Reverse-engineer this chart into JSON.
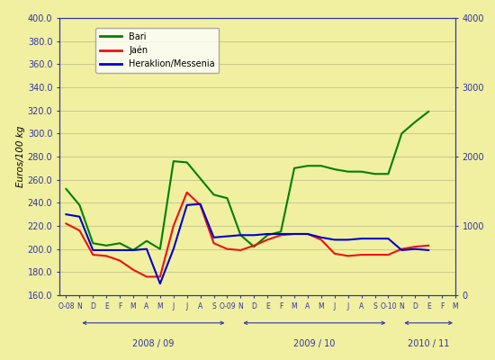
{
  "title_left": "Euros/100 kg",
  "background_color": "#f0f0a0",
  "ylim_left": [
    160.0,
    400.0
  ],
  "ylim_right": [
    0,
    4000
  ],
  "yticks_left": [
    160.0,
    180.0,
    200.0,
    220.0,
    240.0,
    260.0,
    280.0,
    300.0,
    320.0,
    340.0,
    360.0,
    380.0,
    400.0
  ],
  "yticks_right": [
    0,
    1000,
    2000,
    3000,
    4000
  ],
  "x_labels": [
    "O-08",
    "N",
    "D",
    "E",
    "F",
    "M",
    "A",
    "M",
    "J",
    "J",
    "A",
    "S",
    "O-09",
    "N",
    "D",
    "E",
    "F",
    "M",
    "A",
    "M",
    "J",
    "J",
    "A",
    "S",
    "O-10",
    "N",
    "D",
    "E",
    "F",
    "M"
  ],
  "season_info": [
    {
      "label": "2008 / 09",
      "start": 1,
      "end": 12
    },
    {
      "label": "2009 / 10",
      "start": 13,
      "end": 24
    },
    {
      "label": "2010 / 11",
      "start": 25,
      "end": 29
    }
  ],
  "bari": [
    252,
    238,
    205,
    203,
    205,
    199,
    207,
    200,
    276,
    275,
    261,
    247,
    244,
    212,
    202,
    212,
    215,
    270,
    272,
    272,
    269,
    267,
    267,
    265,
    265,
    300,
    310,
    319
  ],
  "jaen": [
    222,
    216,
    195,
    194,
    190,
    182,
    176,
    176,
    220,
    249,
    238,
    205,
    200,
    199,
    203,
    208,
    212,
    213,
    213,
    208,
    196,
    194,
    195,
    195,
    195,
    200,
    202,
    203
  ],
  "heraklion": [
    230,
    228,
    199,
    199,
    199,
    199,
    200,
    170,
    200,
    238,
    239,
    210,
    211,
    212,
    212,
    213,
    213,
    213,
    213,
    210,
    208,
    208,
    209,
    209,
    209,
    199,
    200,
    199
  ],
  "bari_color": "#008000",
  "jaen_color": "#ee1111",
  "heraklion_color": "#0000cc",
  "grid_color": "#c8c890",
  "axis_color": "#3333aa",
  "tick_label_color": "#3333aa",
  "legend_labels": [
    "Bari",
    "Jaén",
    "Heraklion/Messenia"
  ]
}
